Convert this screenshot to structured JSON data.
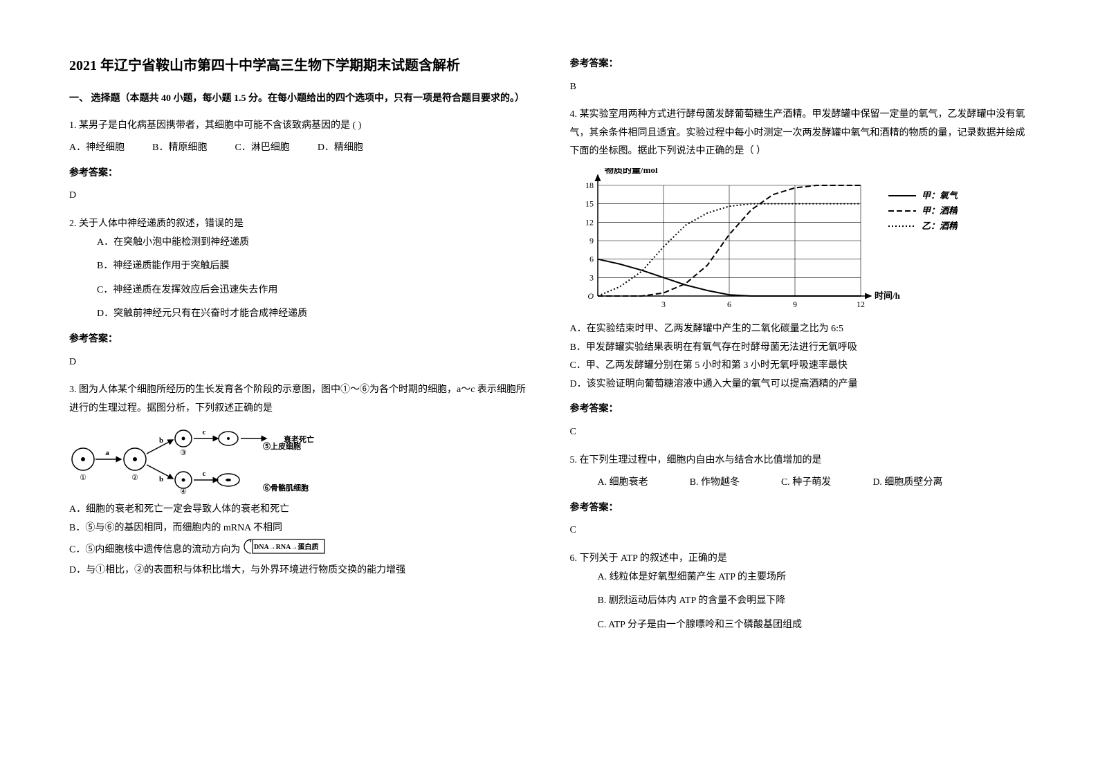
{
  "title": "2021 年辽宁省鞍山市第四十中学高三生物下学期期末试题含解析",
  "section_intro": "一、 选择题（本题共 40 小题，每小题 1.5 分。在每小题给出的四个选项中，只有一项是符合题目要求的。）",
  "answer_label": "参考答案：",
  "q1": {
    "stem": "1. 某男子是白化病基因携带者，其细胞中可能不含该致病基因的是   (     )",
    "A": "A．神经细胞",
    "B": "B．精原细胞",
    "C": "C．淋巴细胞",
    "D": "D．精细胞",
    "answer": "D"
  },
  "q2": {
    "stem": "2. 关于人体中神经递质的叙述，错误的是",
    "A": "A．在突触小泡中能检测到神经递质",
    "B": "B．神经递质能作用于突触后膜",
    "C": "C．神经递质在发挥效应后会迅速失去作用",
    "D": "D．突触前神经元只有在兴奋时才能合成神经递质",
    "answer": "D"
  },
  "q3": {
    "stem": "3. 图为人体某个细胞所经历的生长发育各个阶段的示意图，图中①～⑥为各个时期的细胞，a～c 表示细胞所进行的生理过程。据图分析，下列叙述正确的是",
    "A": "A．细胞的衰老和死亡一定会导致人体的衰老和死亡",
    "B": "B．⑤与⑥的基因相同，而细胞内的 mRNA 不相同",
    "C_pre": "C．⑤内细胞核中遗传信息的流动方向为",
    "C_formula": "DNA→RNA→蛋白质",
    "D": "D．与①相比，②的表面积与体积比增大，与外界环境进行物质交换的能力增强",
    "answer": "B",
    "labels": {
      "a": "a",
      "b": "b",
      "c": "c",
      "n1": "①",
      "n2": "②",
      "n3": "③",
      "n4": "④",
      "n5": "⑤上皮细胞",
      "n6": "⑥骨骼肌细胞",
      "end": "衰老死亡"
    }
  },
  "q4": {
    "stem": "4. 某实验室用两种方式进行酵母菌发酵葡萄糖生产酒精。甲发酵罐中保留一定量的氧气，乙发酵罐中没有氧气，其余条件相同且适宜。实验过程中每小时测定一次两发酵罐中氧气和酒精的物质的量，记录数据并绘成下面的坐标图。据此下列说法中正确的是（        ）",
    "A": "A．在实验结束时甲、乙两发酵罐中产生的二氧化碳量之比为 6:5",
    "B": "B．甲发酵罐实验结果表明在有氧气存在时酵母菌无法进行无氧呼吸",
    "C": "C．甲、乙两发酵罐分别在第 5 小时和第 3 小时无氧呼吸速率最快",
    "D": "D．该实验证明向葡萄糖溶液中通入大量的氧气可以提高酒精的产量",
    "answer": "C",
    "chart": {
      "ylabel": "物质的量/mol",
      "xlabel": "时间/h",
      "xticks": [
        "O",
        "3",
        "6",
        "9",
        "12"
      ],
      "yticks": [
        "3",
        "6",
        "9",
        "12",
        "15",
        "18"
      ],
      "legend": [
        "甲：氧气",
        "甲：酒精",
        "乙：酒精"
      ],
      "colors": {
        "bg": "#ffffff",
        "axis": "#000000",
        "grid": "#000000"
      },
      "series": {
        "jia_o2": [
          [
            0,
            6
          ],
          [
            1,
            5.2
          ],
          [
            2,
            4.2
          ],
          [
            3,
            3
          ],
          [
            4,
            1.8
          ],
          [
            5,
            0.9
          ],
          [
            6,
            0.2
          ],
          [
            7,
            0
          ],
          [
            8,
            0
          ],
          [
            9,
            0
          ],
          [
            10,
            0
          ],
          [
            11,
            0
          ],
          [
            12,
            0
          ]
        ],
        "jia_alc": [
          [
            0,
            0
          ],
          [
            1,
            0
          ],
          [
            2,
            0
          ],
          [
            3,
            0.5
          ],
          [
            4,
            2
          ],
          [
            5,
            5
          ],
          [
            6,
            10
          ],
          [
            7,
            14
          ],
          [
            8,
            16.5
          ],
          [
            9,
            17.6
          ],
          [
            10,
            18
          ],
          [
            11,
            18
          ],
          [
            12,
            18
          ]
        ],
        "yi_alc": [
          [
            0,
            0
          ],
          [
            1,
            1.5
          ],
          [
            2,
            4
          ],
          [
            3,
            8
          ],
          [
            4,
            11.5
          ],
          [
            5,
            13.5
          ],
          [
            6,
            14.6
          ],
          [
            7,
            15
          ],
          [
            8,
            15
          ],
          [
            9,
            15
          ],
          [
            10,
            15
          ],
          [
            11,
            15
          ],
          [
            12,
            15
          ]
        ]
      },
      "xlim": [
        0,
        12
      ],
      "ylim": [
        0,
        18
      ]
    }
  },
  "q5": {
    "stem": "5. 在下列生理过程中，细胞内自由水与结合水比值增加的是",
    "A": "A. 细胞衰老",
    "B": "B. 作物越冬",
    "C": "C. 种子萌发",
    "D": "D. 细胞质壁分离",
    "answer": "C"
  },
  "q6": {
    "stem": "6. 下列关于 ATP 的叙述中，正确的是",
    "A": "A. 线粒体是好氧型细菌产生 ATP 的主要场所",
    "B": "B. 剧烈运动后体内 ATP 的含量不会明显下降",
    "C": "C. ATP 分子是由一个腺嘌呤和三个磷酸基团组成"
  }
}
